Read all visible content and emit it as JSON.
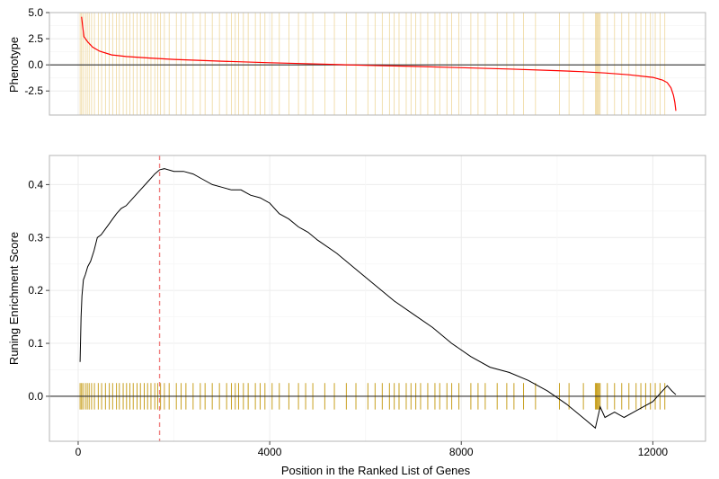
{
  "chart_data": [
    {
      "type": "line",
      "panel": "phenotype",
      "ylabel": "Phenotype",
      "ylim": [
        -4.8,
        5.0
      ],
      "yticks": [
        "5.0",
        "2.5",
        "0.0",
        "-2.5"
      ],
      "ytick_values": [
        5.0,
        2.5,
        0.0,
        -2.5
      ],
      "reference_line": 0,
      "series": [
        {
          "color": "#ff0000",
          "x": [
            70,
            120,
            200,
            300,
            450,
            700,
            1000,
            1500,
            2000,
            3000,
            4000,
            5000,
            6000,
            7000,
            8000,
            9000,
            10000,
            10500,
            11000,
            11500,
            12000,
            12200,
            12300,
            12380,
            12430,
            12460,
            12480
          ],
          "y": [
            4.6,
            2.7,
            2.2,
            1.7,
            1.3,
            0.95,
            0.8,
            0.65,
            0.52,
            0.35,
            0.2,
            0.08,
            -0.05,
            -0.15,
            -0.27,
            -0.4,
            -0.55,
            -0.65,
            -0.78,
            -0.95,
            -1.2,
            -1.45,
            -1.7,
            -2.2,
            -2.9,
            -3.6,
            -4.4
          ]
        }
      ],
      "hit_color": "#e8c97a"
    },
    {
      "type": "line",
      "panel": "enrichment",
      "xlabel": "Position in the Ranked List of Genes",
      "ylabel": "Runing Enrichment Score",
      "xlim": [
        -600,
        13100
      ],
      "ylim": [
        -0.085,
        0.455
      ],
      "xticks": [
        "0",
        "4000",
        "8000",
        "12000"
      ],
      "xtick_values": [
        0,
        4000,
        8000,
        12000
      ],
      "yticks": [
        "0.4",
        "0.3",
        "0.2",
        "0.1",
        "0.0"
      ],
      "ytick_values": [
        0.4,
        0.3,
        0.2,
        0.1,
        0.0
      ],
      "reference_line": 0,
      "vline": {
        "x": 1700,
        "color": "#f08080",
        "dashed": true
      },
      "series": [
        {
          "color": "#000000",
          "x": [
            40,
            60,
            80,
            110,
            150,
            200,
            260,
            330,
            400,
            480,
            560,
            640,
            720,
            800,
            900,
            1000,
            1100,
            1200,
            1300,
            1400,
            1500,
            1600,
            1700,
            1800,
            2000,
            2200,
            2400,
            2600,
            2800,
            3000,
            3200,
            3400,
            3600,
            3800,
            4000,
            4200,
            4400,
            4600,
            4800,
            5000,
            5400,
            5800,
            6200,
            6600,
            7000,
            7400,
            7800,
            8200,
            8600,
            9000,
            9400,
            9800,
            10200,
            10600,
            10800,
            10900,
            11000,
            11200,
            11400,
            11600,
            11800,
            12000,
            12200,
            12300,
            12400,
            12480
          ],
          "y": [
            0.065,
            0.15,
            0.19,
            0.22,
            0.23,
            0.245,
            0.255,
            0.275,
            0.3,
            0.305,
            0.315,
            0.325,
            0.335,
            0.345,
            0.355,
            0.36,
            0.37,
            0.38,
            0.39,
            0.4,
            0.41,
            0.42,
            0.428,
            0.43,
            0.425,
            0.425,
            0.42,
            0.41,
            0.4,
            0.395,
            0.39,
            0.39,
            0.38,
            0.375,
            0.365,
            0.345,
            0.335,
            0.32,
            0.31,
            0.295,
            0.27,
            0.24,
            0.21,
            0.18,
            0.155,
            0.13,
            0.1,
            0.075,
            0.055,
            0.045,
            0.03,
            0.01,
            -0.015,
            -0.045,
            -0.06,
            -0.02,
            -0.04,
            -0.03,
            -0.04,
            -0.03,
            -0.02,
            -0.01,
            0.01,
            0.02,
            0.01,
            0.003
          ]
        }
      ],
      "hit_color": "#c8a020"
    }
  ],
  "hits": [
    40,
    70,
    100,
    150,
    190,
    230,
    280,
    340,
    420,
    490,
    570,
    650,
    720,
    800,
    860,
    940,
    1010,
    1080,
    1150,
    1230,
    1300,
    1380,
    1450,
    1520,
    1600,
    1660,
    1720,
    1800,
    1900,
    2050,
    2150,
    2250,
    2400,
    2550,
    2650,
    2800,
    2950,
    3100,
    3200,
    3280,
    3350,
    3450,
    3550,
    3700,
    3800,
    3900,
    4050,
    4200,
    4400,
    4600,
    4750,
    4900,
    5150,
    5350,
    5600,
    5800,
    6050,
    6200,
    6350,
    6500,
    6600,
    6700,
    6850,
    6950,
    7050,
    7150,
    7300,
    7450,
    7550,
    7700,
    7800,
    7950,
    8200,
    8350,
    8500,
    8750,
    8950,
    9100,
    9300,
    9550,
    10050,
    10250,
    10550,
    10800,
    10820,
    10840,
    10860,
    10880,
    10900,
    11050,
    11200,
    11350,
    11500,
    11650,
    11750,
    11850,
    11950,
    12050,
    12150,
    12250
  ]
}
